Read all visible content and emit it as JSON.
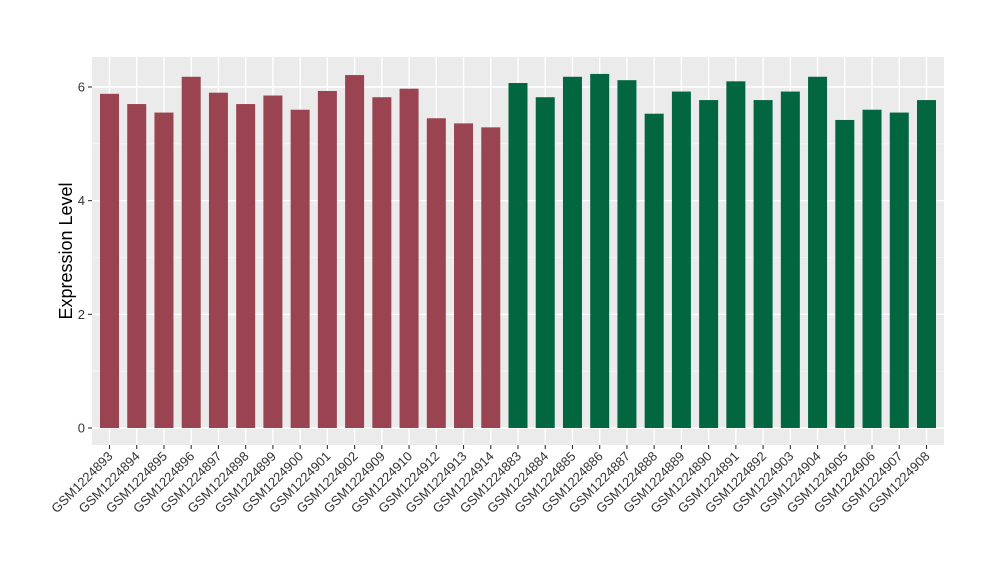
{
  "chart_data": {
    "type": "bar",
    "title": "",
    "xlabel": "",
    "ylabel": "Expression Level",
    "ylim": [
      -0.3,
      6.5
    ],
    "yticks": [
      0,
      2,
      4,
      6
    ],
    "grid": true,
    "legend": "none",
    "categories": [
      "GSM1224893",
      "GSM1224894",
      "GSM1224895",
      "GSM1224896",
      "GSM1224897",
      "GSM1224898",
      "GSM1224899",
      "GSM1224900",
      "GSM1224901",
      "GSM1224902",
      "GSM1224909",
      "GSM1224910",
      "GSM1224912",
      "GSM1224913",
      "GSM1224914",
      "GSM1224883",
      "GSM1224884",
      "GSM1224885",
      "GSM1224886",
      "GSM1224887",
      "GSM1224888",
      "GSM1224889",
      "GSM1224890",
      "GSM1224891",
      "GSM1224892",
      "GSM1224903",
      "GSM1224904",
      "GSM1224905",
      "GSM1224906",
      "GSM1224907",
      "GSM1224908"
    ],
    "values": [
      5.88,
      5.7,
      5.55,
      6.18,
      5.9,
      5.7,
      5.85,
      5.6,
      5.93,
      6.21,
      5.82,
      5.97,
      5.45,
      5.36,
      5.29,
      6.07,
      5.82,
      6.18,
      6.23,
      6.12,
      5.53,
      5.92,
      5.77,
      6.1,
      5.77,
      5.92,
      6.18,
      5.42,
      5.6,
      5.55,
      5.77
    ],
    "groups": [
      0,
      0,
      0,
      0,
      0,
      0,
      0,
      0,
      0,
      0,
      0,
      0,
      0,
      0,
      0,
      1,
      1,
      1,
      1,
      1,
      1,
      1,
      1,
      1,
      1,
      1,
      1,
      1,
      1,
      1,
      1
    ],
    "colors": [
      "#9a4451",
      "#026640"
    ]
  }
}
